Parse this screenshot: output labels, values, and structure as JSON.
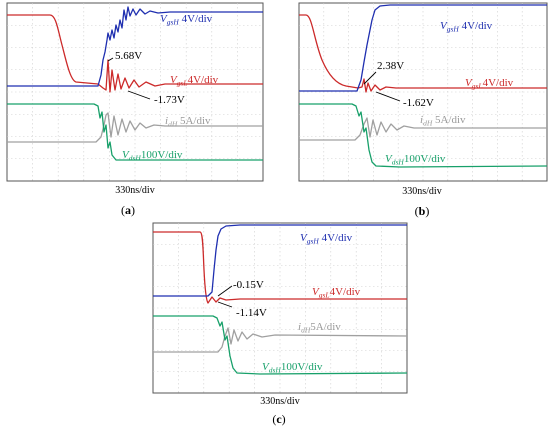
{
  "chart_data": [
    {
      "type": "line",
      "panel_label": "a",
      "time_base": "330ns/div",
      "series": [
        {
          "name": "VgsH",
          "scale": "4V/div",
          "color": "#1f2fb0"
        },
        {
          "name": "VgsL",
          "scale": "4V/div",
          "color": "#cc2a2a"
        },
        {
          "name": "idH",
          "scale": "5A/div",
          "color": "#999999"
        },
        {
          "name": "VdsH",
          "scale": "100V/div",
          "color": "#18a06a"
        }
      ],
      "annotations": [
        {
          "text": "5.68V",
          "value_v": 5.68
        },
        {
          "text": "-1.73V",
          "value_v": -1.73
        }
      ]
    },
    {
      "type": "line",
      "panel_label": "b",
      "time_base": "330ns/div",
      "series": [
        {
          "name": "VgsH",
          "scale": "4V/div",
          "color": "#1f2fb0"
        },
        {
          "name": "VgsL",
          "scale": "4V/div",
          "color": "#cc2a2a"
        },
        {
          "name": "idH",
          "scale": "5A/div",
          "color": "#999999"
        },
        {
          "name": "VdsH",
          "scale": "100V/div",
          "color": "#18a06a"
        }
      ],
      "annotations": [
        {
          "text": "2.38V",
          "value_v": 2.38
        },
        {
          "text": "-1.62V",
          "value_v": -1.62
        }
      ]
    },
    {
      "type": "line",
      "panel_label": "c",
      "time_base": "330ns/div",
      "series": [
        {
          "name": "VgsH",
          "scale": "4V/div",
          "color": "#1f2fb0"
        },
        {
          "name": "VgsL",
          "scale": "4V/div",
          "color": "#cc2a2a"
        },
        {
          "name": "idH",
          "scale": "5A/div",
          "color": "#999999"
        },
        {
          "name": "VdsH",
          "scale": "100V/div",
          "color": "#18a06a"
        }
      ],
      "annotations": [
        {
          "text": "-0.15V",
          "value_v": -0.15
        },
        {
          "text": "-1.14V",
          "value_v": -1.14
        }
      ]
    }
  ],
  "labels": {
    "VgsH": {
      "main": "V",
      "sub": "gsH",
      "scale": "4V/div"
    },
    "VgsL": {
      "main": "V",
      "sub": "gsL",
      "scale": "4V/div"
    },
    "idH": {
      "main": "i",
      "sub": "dH",
      "scale": "5A/div"
    },
    "VdsH": {
      "main": "V",
      "sub": "dsH",
      "scale": "100V/div"
    }
  }
}
